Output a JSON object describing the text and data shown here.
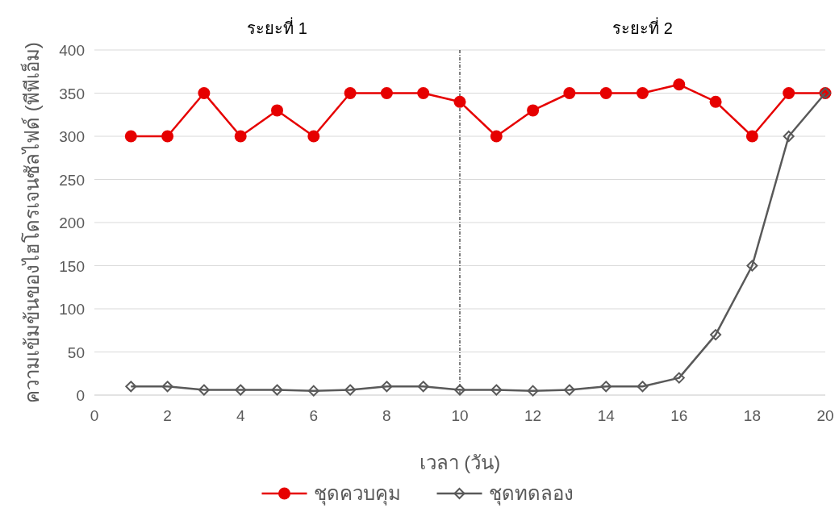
{
  "chart_data": {
    "type": "line",
    "xlabel": "เวลา (วัน)",
    "ylabel": "ความเข้มข้นของไฮโดรเจนซัลไฟด์ (พีพีเอ็ม)",
    "x": [
      1,
      2,
      3,
      4,
      5,
      6,
      7,
      8,
      9,
      10,
      11,
      12,
      13,
      14,
      15,
      16,
      17,
      18,
      19,
      20
    ],
    "series": [
      {
        "name": "ชุดควบคุม",
        "color": "#e60000",
        "marker": "circle",
        "values": [
          300,
          300,
          350,
          300,
          330,
          300,
          350,
          350,
          350,
          340,
          300,
          330,
          350,
          350,
          350,
          360,
          340,
          300,
          350,
          350
        ]
      },
      {
        "name": "ชุดทดลอง",
        "color": "#595959",
        "marker": "diamond",
        "values": [
          10,
          10,
          6,
          6,
          6,
          5,
          6,
          10,
          10,
          6,
          6,
          5,
          6,
          10,
          10,
          20,
          70,
          150,
          300,
          350
        ]
      }
    ],
    "xlim": [
      0,
      20
    ],
    "xticks": [
      0,
      2,
      4,
      6,
      8,
      10,
      12,
      14,
      16,
      18,
      20
    ],
    "ylim": [
      0,
      400
    ],
    "yticks": [
      0,
      50,
      100,
      150,
      200,
      250,
      300,
      350,
      400
    ],
    "grid": "y",
    "legend": "bottom",
    "ref_lines": [
      {
        "axis": "x",
        "value": 10,
        "color": "#000000",
        "line_style": "dashdot"
      }
    ],
    "annotations": [
      "ระยะที่ 1",
      "ระยะที่ 2"
    ]
  }
}
